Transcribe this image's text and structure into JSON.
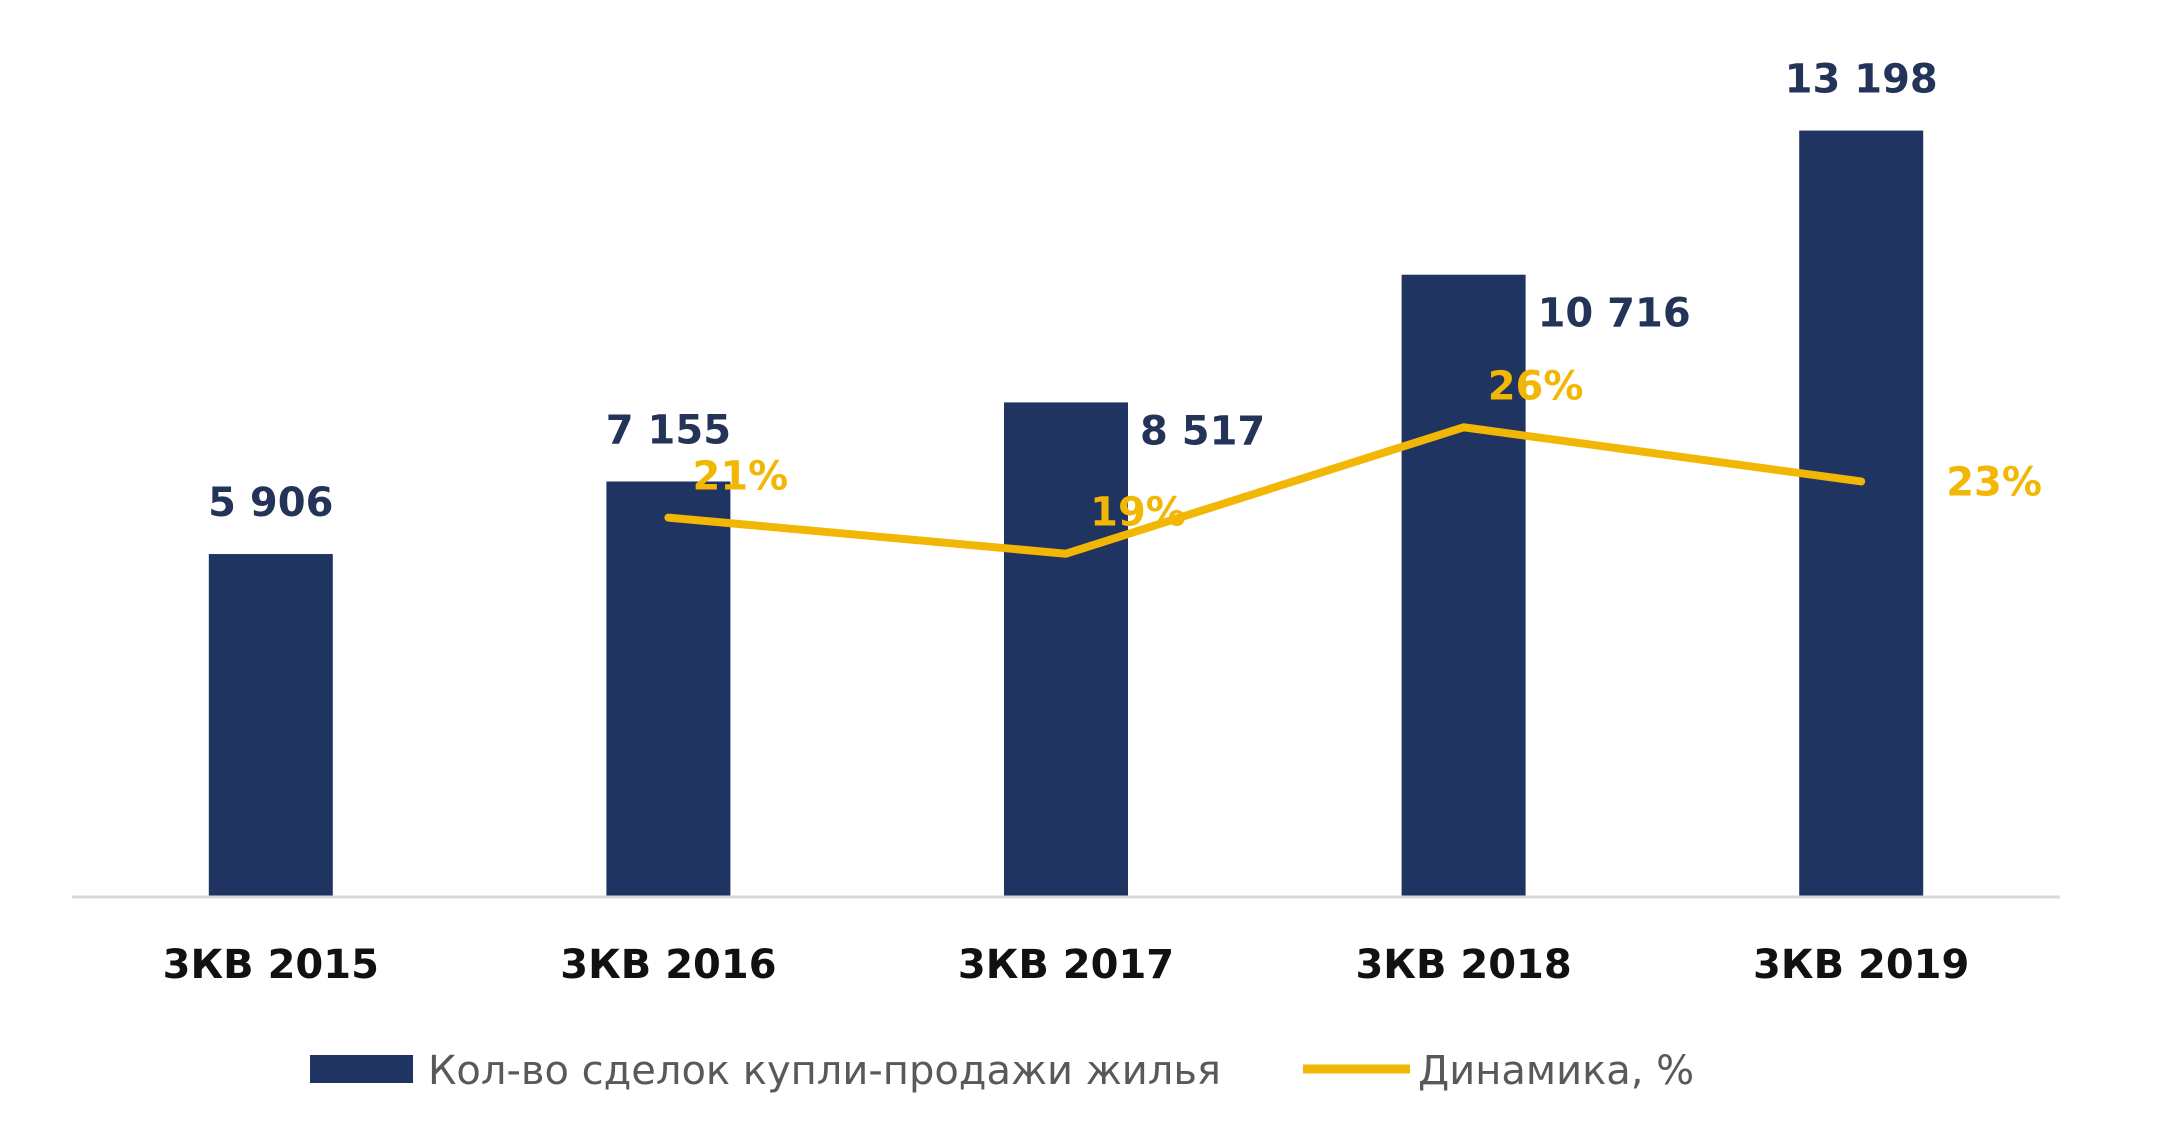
{
  "chart_data": {
    "type": "bar",
    "title": "",
    "xlabel": "",
    "ylabel": "",
    "categories": [
      "3КВ 2015",
      "3КВ 2016",
      "3КВ 2017",
      "3КВ 2018",
      "3КВ 2019"
    ],
    "series": [
      {
        "name": "Кол-во сделок купли-продажи жилья",
        "type": "bar",
        "values": [
          5906,
          7155,
          8517,
          10716,
          13198
        ],
        "labels": [
          "5 906",
          "7 155",
          "8 517",
          "10 716",
          "13 198"
        ],
        "color": "#1f3461"
      },
      {
        "name": "Динамика, %",
        "type": "line",
        "values": [
          null,
          21,
          19,
          26,
          23
        ],
        "labels": [
          "",
          "21%",
          "19%",
          "26%",
          "23%"
        ],
        "color": "#f2b705"
      }
    ],
    "ylim": [
      0,
      14000
    ],
    "y2lim": [
      0,
      45
    ],
    "grid": false,
    "legend_position": "bottom"
  }
}
